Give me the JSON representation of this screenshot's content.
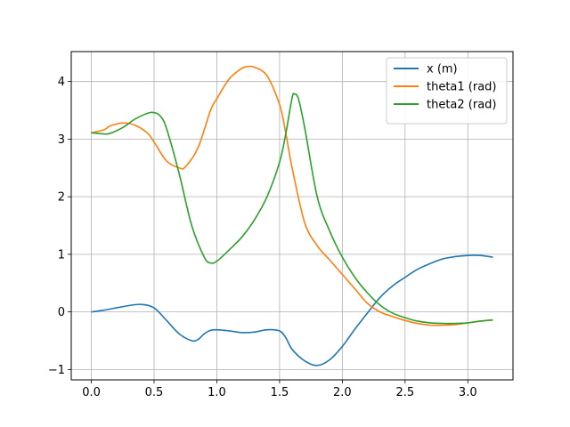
{
  "chart_data": {
    "type": "line",
    "title": "",
    "xlabel": "",
    "ylabel": "",
    "xlim": [
      -0.16,
      3.36
    ],
    "ylim": [
      -1.18,
      4.52
    ],
    "xticks": [
      0.0,
      0.5,
      1.0,
      1.5,
      2.0,
      2.5,
      3.0
    ],
    "xtick_labels": [
      "0.0",
      "0.5",
      "1.0",
      "1.5",
      "2.0",
      "2.5",
      "3.0"
    ],
    "yticks": [
      -1,
      0,
      1,
      2,
      3,
      4
    ],
    "ytick_labels": [
      "−1",
      "0",
      "1",
      "2",
      "3",
      "4"
    ],
    "grid": true,
    "legend_position": "upper-right",
    "series": [
      {
        "name": "x (m)",
        "color": "#1f77b4",
        "points": [
          [
            0.0,
            0.0
          ],
          [
            0.1,
            0.03
          ],
          [
            0.2,
            0.07
          ],
          [
            0.3,
            0.11
          ],
          [
            0.4,
            0.13
          ],
          [
            0.5,
            0.07
          ],
          [
            0.6,
            -0.15
          ],
          [
            0.7,
            -0.38
          ],
          [
            0.8,
            -0.5
          ],
          [
            0.85,
            -0.48
          ],
          [
            0.9,
            -0.38
          ],
          [
            0.95,
            -0.32
          ],
          [
            1.0,
            -0.31
          ],
          [
            1.1,
            -0.33
          ],
          [
            1.2,
            -0.36
          ],
          [
            1.3,
            -0.35
          ],
          [
            1.4,
            -0.31
          ],
          [
            1.5,
            -0.33
          ],
          [
            1.55,
            -0.45
          ],
          [
            1.6,
            -0.65
          ],
          [
            1.7,
            -0.85
          ],
          [
            1.8,
            -0.93
          ],
          [
            1.9,
            -0.83
          ],
          [
            2.0,
            -0.6
          ],
          [
            2.1,
            -0.3
          ],
          [
            2.2,
            -0.02
          ],
          [
            2.3,
            0.25
          ],
          [
            2.4,
            0.45
          ],
          [
            2.5,
            0.6
          ],
          [
            2.6,
            0.74
          ],
          [
            2.7,
            0.84
          ],
          [
            2.8,
            0.92
          ],
          [
            2.9,
            0.96
          ],
          [
            3.0,
            0.98
          ],
          [
            3.1,
            0.98
          ],
          [
            3.2,
            0.95
          ]
        ]
      },
      {
        "name": "theta1 (rad)",
        "color": "#ff7f0e",
        "points": [
          [
            0.0,
            3.11
          ],
          [
            0.1,
            3.16
          ],
          [
            0.15,
            3.23
          ],
          [
            0.25,
            3.28
          ],
          [
            0.35,
            3.24
          ],
          [
            0.45,
            3.1
          ],
          [
            0.5,
            2.95
          ],
          [
            0.6,
            2.62
          ],
          [
            0.7,
            2.5
          ],
          [
            0.75,
            2.52
          ],
          [
            0.85,
            2.85
          ],
          [
            0.95,
            3.5
          ],
          [
            1.0,
            3.7
          ],
          [
            1.1,
            4.05
          ],
          [
            1.2,
            4.23
          ],
          [
            1.25,
            4.26
          ],
          [
            1.3,
            4.25
          ],
          [
            1.4,
            4.1
          ],
          [
            1.5,
            3.6
          ],
          [
            1.55,
            3.1
          ],
          [
            1.6,
            2.5
          ],
          [
            1.7,
            1.55
          ],
          [
            1.8,
            1.15
          ],
          [
            1.9,
            0.9
          ],
          [
            2.0,
            0.65
          ],
          [
            2.1,
            0.4
          ],
          [
            2.2,
            0.15
          ],
          [
            2.3,
            0.0
          ],
          [
            2.4,
            -0.08
          ],
          [
            2.5,
            -0.15
          ],
          [
            2.6,
            -0.2
          ],
          [
            2.7,
            -0.23
          ],
          [
            2.8,
            -0.23
          ],
          [
            2.9,
            -0.22
          ],
          [
            3.0,
            -0.19
          ],
          [
            3.1,
            -0.16
          ],
          [
            3.2,
            -0.14
          ]
        ]
      },
      {
        "name": "theta2 (rad)",
        "color": "#2ca02c",
        "points": [
          [
            0.0,
            3.11
          ],
          [
            0.1,
            3.09
          ],
          [
            0.15,
            3.1
          ],
          [
            0.25,
            3.2
          ],
          [
            0.35,
            3.35
          ],
          [
            0.45,
            3.45
          ],
          [
            0.5,
            3.46
          ],
          [
            0.55,
            3.4
          ],
          [
            0.6,
            3.18
          ],
          [
            0.7,
            2.4
          ],
          [
            0.8,
            1.5
          ],
          [
            0.9,
            0.95
          ],
          [
            0.95,
            0.85
          ],
          [
            1.0,
            0.88
          ],
          [
            1.1,
            1.08
          ],
          [
            1.2,
            1.3
          ],
          [
            1.3,
            1.6
          ],
          [
            1.4,
            2.0
          ],
          [
            1.5,
            2.6
          ],
          [
            1.55,
            3.1
          ],
          [
            1.6,
            3.72
          ],
          [
            1.62,
            3.78
          ],
          [
            1.65,
            3.7
          ],
          [
            1.7,
            3.2
          ],
          [
            1.8,
            2.0
          ],
          [
            1.9,
            1.4
          ],
          [
            2.0,
            0.95
          ],
          [
            2.1,
            0.6
          ],
          [
            2.2,
            0.33
          ],
          [
            2.3,
            0.12
          ],
          [
            2.4,
            -0.02
          ],
          [
            2.5,
            -0.1
          ],
          [
            2.6,
            -0.16
          ],
          [
            2.7,
            -0.19
          ],
          [
            2.8,
            -0.2
          ],
          [
            2.9,
            -0.2
          ],
          [
            3.0,
            -0.19
          ],
          [
            3.1,
            -0.16
          ],
          [
            3.2,
            -0.14
          ]
        ]
      }
    ]
  }
}
